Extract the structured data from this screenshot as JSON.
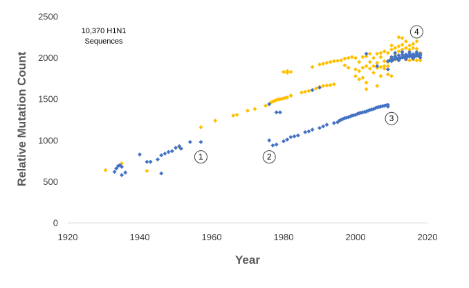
{
  "chart_data": {
    "type": "scatter",
    "title": "",
    "xlabel": "Year",
    "ylabel": "Relative Mutation Count",
    "xlim": [
      1920,
      2020
    ],
    "ylim": [
      0,
      2500
    ],
    "x_ticks": [
      1920,
      1940,
      1960,
      1980,
      2000,
      2020
    ],
    "y_ticks": [
      0,
      500,
      1000,
      1500,
      2000,
      2500
    ],
    "grid": false,
    "annotation": {
      "line1": "10,370 H1N1",
      "line2": "Sequences"
    },
    "colors": {
      "orange": "#ffc000",
      "blue": "#4472c4"
    },
    "markers": [
      {
        "label": "1",
        "x": 1957,
        "y": 800
      },
      {
        "label": "2",
        "x": 1976,
        "y": 800
      },
      {
        "label": "3",
        "x": 2010,
        "y": 1265
      },
      {
        "label": "4",
        "x": 2017,
        "y": 2315
      }
    ],
    "series": [
      {
        "color": "orange",
        "points": [
          [
            1930.5,
            640
          ],
          [
            1935,
            720
          ],
          [
            1942,
            630
          ],
          [
            1951,
            920
          ],
          [
            1957,
            1160
          ],
          [
            1961,
            1240
          ],
          [
            1966,
            1300
          ],
          [
            1967,
            1310
          ],
          [
            1970,
            1360
          ],
          [
            1972,
            1380
          ],
          [
            1975,
            1420
          ],
          [
            1976,
            1440
          ],
          [
            1976.5,
            1460
          ],
          [
            1977,
            1470
          ],
          [
            1977.5,
            1480
          ],
          [
            1978,
            1490
          ],
          [
            1978.5,
            1495
          ],
          [
            1979,
            1500
          ],
          [
            1979.5,
            1505
          ],
          [
            1980,
            1510
          ],
          [
            1980.5,
            1515
          ],
          [
            1981,
            1520
          ],
          [
            1982,
            1540
          ],
          [
            1982,
            1545
          ],
          [
            1980,
            1830
          ],
          [
            1981,
            1820
          ],
          [
            1982,
            1830
          ],
          [
            1981,
            1840
          ],
          [
            1985,
            1580
          ],
          [
            1986,
            1590
          ],
          [
            1987,
            1600
          ],
          [
            1988,
            1610
          ],
          [
            1989,
            1630
          ],
          [
            1988,
            1890
          ],
          [
            1990,
            1650
          ],
          [
            1991,
            1660
          ],
          [
            1992,
            1665
          ],
          [
            1993,
            1670
          ],
          [
            1994,
            1680
          ],
          [
            1990,
            1920
          ],
          [
            1991,
            1930
          ],
          [
            1992,
            1940
          ],
          [
            1993,
            1950
          ],
          [
            1994,
            1960
          ],
          [
            1995,
            1965
          ],
          [
            1996,
            1970
          ],
          [
            1997,
            1990
          ],
          [
            1998,
            2000
          ],
          [
            1999,
            2010
          ],
          [
            1998,
            1880
          ],
          [
            1997,
            1910
          ],
          [
            2000,
            1780
          ],
          [
            2000,
            1860
          ],
          [
            2000,
            2000
          ],
          [
            2001,
            1740
          ],
          [
            2001,
            1840
          ],
          [
            2001,
            1950
          ],
          [
            2002,
            1760
          ],
          [
            2002,
            1880
          ],
          [
            2002,
            2010
          ],
          [
            2003,
            1620
          ],
          [
            2003,
            1700
          ],
          [
            2003,
            1900
          ],
          [
            2003,
            2020
          ],
          [
            2004,
            1870
          ],
          [
            2004,
            1950
          ],
          [
            2004,
            2050
          ],
          [
            2005,
            1900
          ],
          [
            2005,
            2000
          ],
          [
            2005,
            1820
          ],
          [
            2006,
            1880
          ],
          [
            2006,
            1940
          ],
          [
            2006,
            2050
          ],
          [
            2006,
            1660
          ],
          [
            2007,
            1890
          ],
          [
            2007,
            2010
          ],
          [
            2007,
            2060
          ],
          [
            2007,
            1780
          ],
          [
            2008,
            1900
          ],
          [
            2008,
            1960
          ],
          [
            2008,
            2080
          ],
          [
            2008,
            1870
          ],
          [
            2009,
            1900
          ],
          [
            2009,
            1950
          ],
          [
            2009,
            2060
          ],
          [
            2009,
            1800
          ],
          [
            2010,
            1780
          ],
          [
            2010,
            2000
          ],
          [
            2010,
            2100
          ],
          [
            2010,
            2150
          ],
          [
            2011,
            2050
          ],
          [
            2011,
            2120
          ],
          [
            2011,
            1980
          ],
          [
            2012,
            2080
          ],
          [
            2012,
            2140
          ],
          [
            2012,
            2250
          ],
          [
            2013,
            2100
          ],
          [
            2013,
            2160
          ],
          [
            2013,
            2240
          ],
          [
            2014,
            2120
          ],
          [
            2014,
            2200
          ],
          [
            2014,
            1980
          ],
          [
            2015,
            2100
          ],
          [
            2015,
            2150
          ],
          [
            2015,
            1970
          ],
          [
            2016,
            2120
          ],
          [
            2016,
            2170
          ],
          [
            2016,
            1980
          ],
          [
            2017,
            2110
          ],
          [
            2017,
            2200
          ],
          [
            2017,
            1970
          ],
          [
            2018,
            2000
          ],
          [
            2018,
            2060
          ],
          [
            2018,
            1970
          ]
        ]
      },
      {
        "color": "blue",
        "points": [
          [
            1933,
            620
          ],
          [
            1933.5,
            660
          ],
          [
            1934,
            690
          ],
          [
            1934.5,
            700
          ],
          [
            1935,
            680
          ],
          [
            1935,
            580
          ],
          [
            1936,
            610
          ],
          [
            1940,
            830
          ],
          [
            1942,
            740
          ],
          [
            1943,
            740
          ],
          [
            1945,
            770
          ],
          [
            1946,
            820
          ],
          [
            1946,
            600
          ],
          [
            1947,
            840
          ],
          [
            1948,
            860
          ],
          [
            1949,
            870
          ],
          [
            1950,
            910
          ],
          [
            1951,
            930
          ],
          [
            1951.5,
            900
          ],
          [
            1954,
            980
          ],
          [
            1957,
            980
          ],
          [
            1976,
            1440
          ],
          [
            1976,
            1000
          ],
          [
            1977,
            940
          ],
          [
            1978,
            950
          ],
          [
            1978,
            1340
          ],
          [
            1979,
            1340
          ],
          [
            1980,
            990
          ],
          [
            1981,
            1010
          ],
          [
            1982,
            1040
          ],
          [
            1983,
            1050
          ],
          [
            1984,
            1060
          ],
          [
            1986,
            1100
          ],
          [
            1987,
            1110
          ],
          [
            1988,
            1130
          ],
          [
            1988,
            1610
          ],
          [
            1990,
            1150
          ],
          [
            1991,
            1170
          ],
          [
            1992,
            1190
          ],
          [
            1994,
            1210
          ],
          [
            1990,
            1640
          ],
          [
            1995,
            1220
          ],
          [
            1995.5,
            1240
          ],
          [
            1996,
            1250
          ],
          [
            1996.5,
            1260
          ],
          [
            1997,
            1270
          ],
          [
            1997.5,
            1275
          ],
          [
            1998,
            1280
          ],
          [
            1998.5,
            1290
          ],
          [
            1999,
            1300
          ],
          [
            1999.5,
            1305
          ],
          [
            2000,
            1310
          ],
          [
            2000.5,
            1320
          ],
          [
            2001,
            1330
          ],
          [
            2001.5,
            1335
          ],
          [
            2002,
            1340
          ],
          [
            2002.5,
            1345
          ],
          [
            2003,
            1350
          ],
          [
            2003.5,
            1360
          ],
          [
            2004,
            1370
          ],
          [
            2004.5,
            1375
          ],
          [
            2005,
            1380
          ],
          [
            2005.5,
            1390
          ],
          [
            2006,
            1400
          ],
          [
            2006.5,
            1405
          ],
          [
            2007,
            1410
          ],
          [
            2007.5,
            1415
          ],
          [
            2008,
            1420
          ],
          [
            2008.5,
            1425
          ],
          [
            2009,
            1430
          ],
          [
            2009,
            1410
          ],
          [
            2003,
            2050
          ],
          [
            2006,
            1900
          ],
          [
            2009,
            1860
          ],
          [
            2009,
            1960
          ],
          [
            2009.5,
            1970
          ],
          [
            2010,
            1980
          ],
          [
            2010.5,
            1980
          ],
          [
            2011,
            1990
          ],
          [
            2011.5,
            1990
          ],
          [
            2012,
            2000
          ],
          [
            2012.5,
            2000
          ],
          [
            2013,
            2005
          ],
          [
            2013.5,
            2010
          ],
          [
            2014,
            2010
          ],
          [
            2014.5,
            2015
          ],
          [
            2015,
            2015
          ],
          [
            2015.5,
            2020
          ],
          [
            2016,
            2020
          ],
          [
            2016.5,
            2020
          ],
          [
            2017,
            2025
          ],
          [
            2017.5,
            2025
          ],
          [
            2018,
            2030
          ],
          [
            2010,
            2010
          ],
          [
            2011,
            2020
          ],
          [
            2012,
            2030
          ],
          [
            2013,
            2040
          ],
          [
            2014,
            2040
          ],
          [
            2015,
            2045
          ],
          [
            2016,
            2045
          ],
          [
            2017,
            2050
          ],
          [
            2018,
            2050
          ],
          [
            2010,
            1960
          ],
          [
            2012,
            1970
          ],
          [
            2014,
            1985
          ],
          [
            2016,
            1995
          ],
          [
            2018,
            2005
          ],
          [
            2011,
            2060
          ],
          [
            2013,
            2070
          ],
          [
            2015,
            2070
          ],
          [
            2017,
            2070
          ]
        ]
      }
    ]
  }
}
